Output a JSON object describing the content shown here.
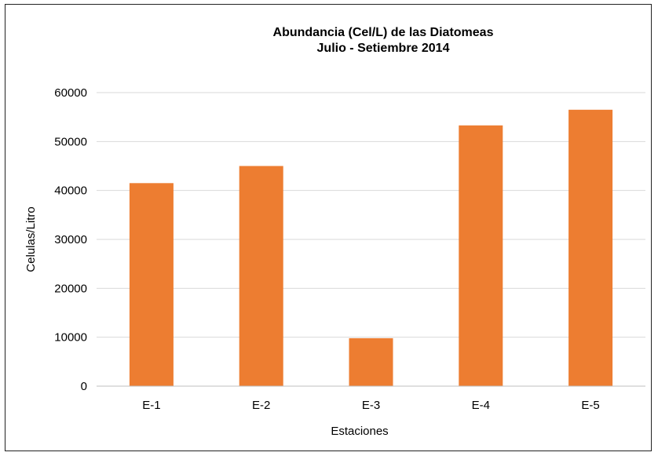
{
  "chart_data": {
    "type": "bar",
    "title": "Abundancia (Cel/L) de las Diatomeas",
    "subtitle": "Julio - Setiembre 2014",
    "xlabel": "Estaciones",
    "ylabel": "Celulas/Litro",
    "categories": [
      "E-1",
      "E-2",
      "E-3",
      "E-4",
      "E-5"
    ],
    "series": [
      {
        "values": [
          41500,
          45000,
          9800,
          53300,
          56500
        ]
      }
    ],
    "ylim": [
      0,
      60000
    ],
    "yticks": [
      0,
      10000,
      20000,
      30000,
      40000,
      50000,
      60000
    ],
    "ytick_labels": [
      "0",
      "10000",
      "20000",
      "30000",
      "40000",
      "50000",
      "60000"
    ],
    "grid": true,
    "legend": "none",
    "colors": {
      "bar": "#ED7D31",
      "grid": "#D9D9D9",
      "axis": "#BFBFBF"
    }
  }
}
